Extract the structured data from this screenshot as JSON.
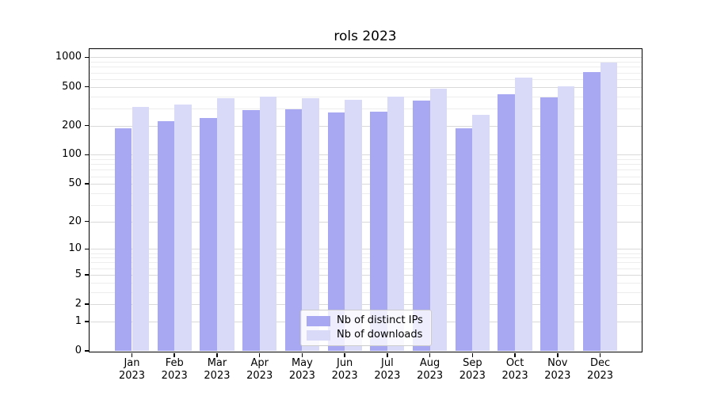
{
  "figure": {
    "title": "rols 2023"
  },
  "legend": {
    "items": [
      {
        "label": "Nb of distinct IPs",
        "color": "#a7a7f2"
      },
      {
        "label": "Nb of downloads",
        "color": "#d9d9f8"
      }
    ]
  },
  "chart_data": {
    "type": "bar",
    "title": "rols 2023",
    "categories": [
      "Jan",
      "Feb",
      "Mar",
      "Apr",
      "May",
      "Jun",
      "Jul",
      "Aug",
      "Sep",
      "Oct",
      "Nov",
      "Dec"
    ],
    "category_year": "2023",
    "series": [
      {
        "name": "Nb of distinct IPs",
        "color": "#a7a7f2",
        "values": [
          186,
          222,
          241,
          288,
          294,
          273,
          278,
          362,
          186,
          420,
          390,
          710
        ]
      },
      {
        "name": "Nb of downloads",
        "color": "#d9d9f8",
        "values": [
          310,
          331,
          382,
          400,
          380,
          368,
          397,
          480,
          257,
          625,
          505,
          890
        ]
      }
    ],
    "yscale": "log1p",
    "yticks": [
      0,
      1,
      2,
      5,
      10,
      20,
      50,
      100,
      200,
      500,
      1000
    ],
    "minor_grid_values": [
      3,
      4,
      6,
      7,
      8,
      9,
      30,
      40,
      60,
      70,
      80,
      90,
      300,
      400,
      600,
      700,
      800,
      900
    ],
    "ylim": [
      0,
      1215
    ],
    "xlabel": "",
    "ylabel": "",
    "grid": true,
    "legend_position": "lower center"
  },
  "colors": {
    "axis": "#000000",
    "major_grid": "#d9d9d9",
    "minor_grid": "#ededed",
    "legend_border": "#cccccc",
    "background": "#ffffff"
  }
}
